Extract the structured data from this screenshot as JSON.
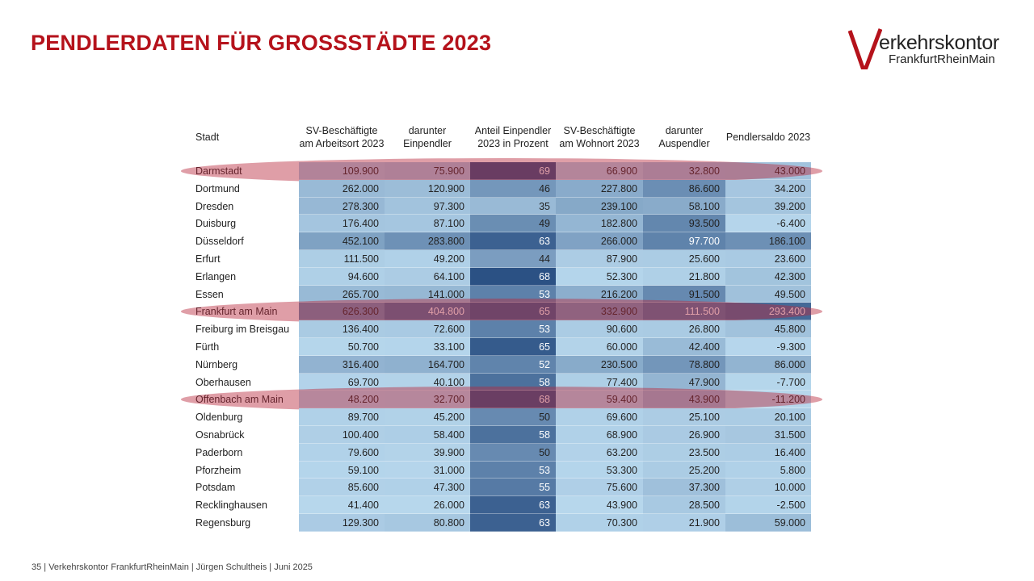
{
  "slide": {
    "title": "PENDLERDATEN FÜR GROSSSTÄDTE 2023",
    "footer": "35   |   Verkehrskontor FrankfurtRheinMain  | Jürgen Schultheis  |  Juni 2025"
  },
  "logo": {
    "line1": "erkehrskontor",
    "line2": "FrankfurtRheinMain",
    "accent_color": "#b5121b"
  },
  "table": {
    "headers": [
      "Stadt",
      "SV-Beschäftigte am Arbeitsort 2023",
      "darunter Einpendler",
      "Anteil Einpendler 2023 in Prozent",
      "SV-Beschäftigte am Wohnort 2023",
      "darunter Auspendler",
      "Pendlersaldo 2023"
    ],
    "highlighted_rows": [
      "Darmstadt",
      "Frankfurt am Main",
      "Offenbach am Main"
    ],
    "rows": [
      {
        "city": "Darmstadt",
        "values": [
          "109.900",
          "75.900",
          "69",
          "66.900",
          "32.800",
          "43.000"
        ]
      },
      {
        "city": "Dortmund",
        "values": [
          "262.000",
          "120.900",
          "46",
          "227.800",
          "86.600",
          "34.200"
        ]
      },
      {
        "city": "Dresden",
        "values": [
          "278.300",
          "97.300",
          "35",
          "239.100",
          "58.100",
          "39.200"
        ]
      },
      {
        "city": "Duisburg",
        "values": [
          "176.400",
          "87.100",
          "49",
          "182.800",
          "93.500",
          "-6.400"
        ]
      },
      {
        "city": "Düsseldorf",
        "values": [
          "452.100",
          "283.800",
          "63",
          "266.000",
          "97.700",
          "186.100"
        ]
      },
      {
        "city": "Erfurt",
        "values": [
          "111.500",
          "49.200",
          "44",
          "87.900",
          "25.600",
          "23.600"
        ]
      },
      {
        "city": "Erlangen",
        "values": [
          "94.600",
          "64.100",
          "68",
          "52.300",
          "21.800",
          "42.300"
        ]
      },
      {
        "city": "Essen",
        "values": [
          "265.700",
          "141.000",
          "53",
          "216.200",
          "91.500",
          "49.500"
        ]
      },
      {
        "city": "Frankfurt am Main",
        "values": [
          "626.300",
          "404.800",
          "65",
          "332.900",
          "111.500",
          "293.400"
        ]
      },
      {
        "city": "Freiburg im Breisgau",
        "values": [
          "136.400",
          "72.600",
          "53",
          "90.600",
          "26.800",
          "45.800"
        ]
      },
      {
        "city": "Fürth",
        "values": [
          "50.700",
          "33.100",
          "65",
          "60.000",
          "42.400",
          "-9.300"
        ]
      },
      {
        "city": "Nürnberg",
        "values": [
          "316.400",
          "164.700",
          "52",
          "230.500",
          "78.800",
          "86.000"
        ]
      },
      {
        "city": "Oberhausen",
        "values": [
          "69.700",
          "40.100",
          "58",
          "77.400",
          "47.900",
          "-7.700"
        ]
      },
      {
        "city": "Offenbach am Main",
        "values": [
          "48.200",
          "32.700",
          "68",
          "59.400",
          "43.900",
          "-11.200"
        ]
      },
      {
        "city": "Oldenburg",
        "values": [
          "89.700",
          "45.200",
          "50",
          "69.600",
          "25.100",
          "20.100"
        ]
      },
      {
        "city": "Osnabrück",
        "values": [
          "100.400",
          "58.400",
          "58",
          "68.900",
          "26.900",
          "31.500"
        ]
      },
      {
        "city": "Paderborn",
        "values": [
          "79.600",
          "39.900",
          "50",
          "63.200",
          "23.500",
          "16.400"
        ]
      },
      {
        "city": "Pforzheim",
        "values": [
          "59.100",
          "31.000",
          "53",
          "53.300",
          "25.200",
          "5.800"
        ]
      },
      {
        "city": "Potsdam",
        "values": [
          "85.600",
          "47.300",
          "55",
          "75.600",
          "37.300",
          "10.000"
        ]
      },
      {
        "city": "Recklinghausen",
        "values": [
          "41.400",
          "26.000",
          "63",
          "43.900",
          "28.500",
          "-2.500"
        ]
      },
      {
        "city": "Regensburg",
        "values": [
          "129.300",
          "80.800",
          "63",
          "70.300",
          "21.900",
          "59.000"
        ]
      }
    ]
  }
}
